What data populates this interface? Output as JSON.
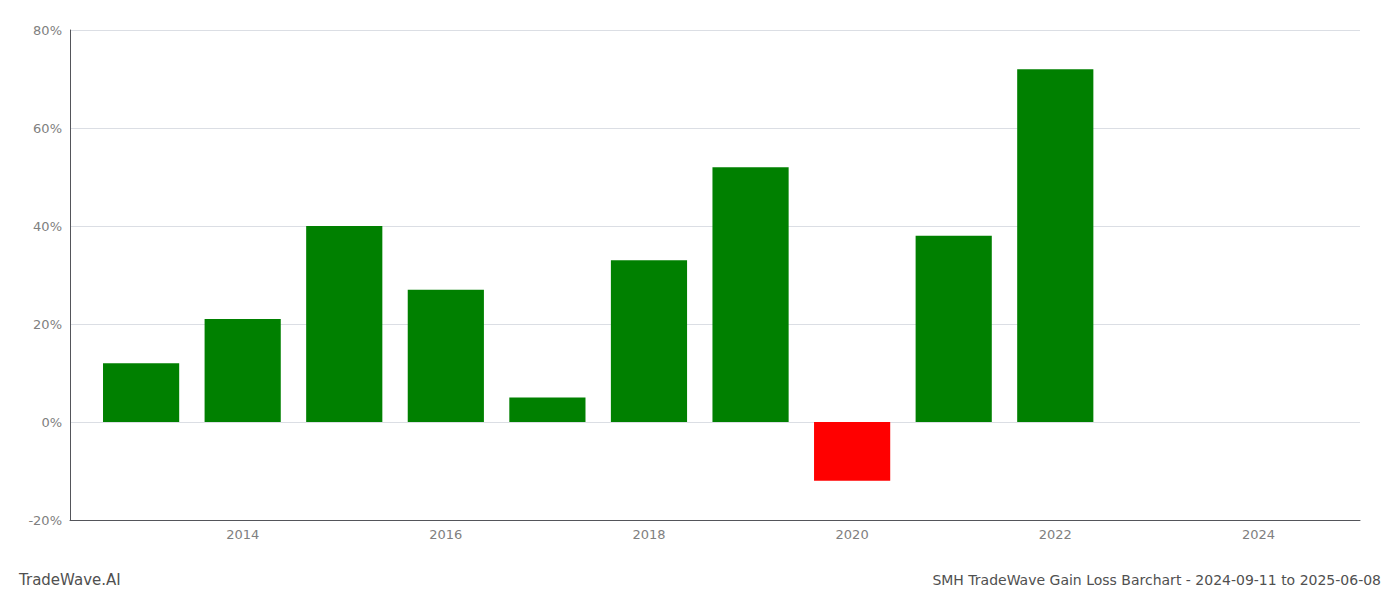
{
  "chart_data": {
    "type": "bar",
    "title": "SMH TradeWave Gain Loss Barchart - 2024-09-11 to 2025-06-08",
    "annotations": [
      "TradeWave.AI"
    ],
    "x": [
      2013,
      2014,
      2015,
      2016,
      2017,
      2018,
      2019,
      2020,
      2021,
      2022
    ],
    "values": [
      12.0,
      21.0,
      40.0,
      27.0,
      5.0,
      33.0,
      52.0,
      -12.0,
      38.0,
      72.0
    ],
    "colors": [
      "#008000",
      "#008000",
      "#008000",
      "#008000",
      "#008000",
      "#008000",
      "#008000",
      "#ff0000",
      "#008000",
      "#008000"
    ],
    "xlim": [
      2012.3,
      2025.0
    ],
    "xticks": [
      2014,
      2016,
      2018,
      2020,
      2022,
      2024
    ],
    "ylim": [
      -20,
      80
    ],
    "yticks": [
      {
        "value": -20,
        "label": "-20%"
      },
      {
        "value": 0,
        "label": "0%"
      },
      {
        "value": 20,
        "label": "20%"
      },
      {
        "value": 40,
        "label": "40%"
      },
      {
        "value": 60,
        "label": "60%"
      },
      {
        "value": 80,
        "label": "80%"
      }
    ],
    "grid": true
  }
}
